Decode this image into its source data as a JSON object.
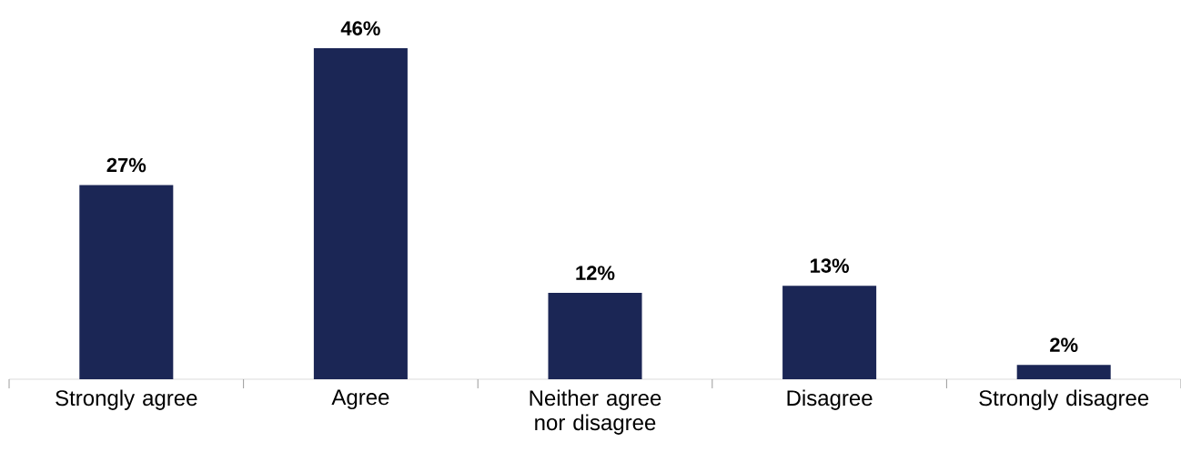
{
  "chart_data": {
    "type": "bar",
    "categories": [
      "Strongly agree",
      "Agree",
      "Neither agree nor disagree",
      "Disagree",
      "Strongly disagree"
    ],
    "values": [
      27,
      46,
      12,
      13,
      2
    ],
    "color": "#1b2655",
    "value_labels": [
      "27%",
      "46%",
      "12%",
      "13%",
      "2%"
    ]
  }
}
